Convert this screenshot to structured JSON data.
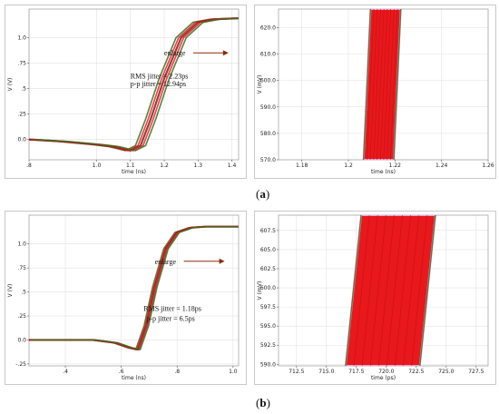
{
  "panel_labels": {
    "a": "a",
    "b": "b"
  },
  "chart_data": [
    {
      "id": "a-left",
      "type": "line",
      "xlabel": "time (ns)",
      "ylabel": "V (V)",
      "xlim": [
        0.8,
        1.42
      ],
      "ylim": [
        -0.2,
        1.28
      ],
      "x_ticks": [
        0.8,
        1.0,
        1.1,
        1.2,
        1.3,
        1.4
      ],
      "x_tick_labels": [
        ".8",
        "1.0",
        "1.1",
        "1.2",
        "1.3",
        "1.4"
      ],
      "y_ticks": [
        0.0,
        0.25,
        0.5,
        0.75,
        1.0
      ],
      "y_tick_labels": [
        "0.0",
        ".25",
        ".5",
        ".75",
        "1.0"
      ],
      "grid": true,
      "series": [
        {
          "x": [
            0.8,
            0.9,
            1.0,
            1.05,
            1.1,
            1.13,
            1.16,
            1.2,
            1.25,
            1.3,
            1.35,
            1.42
          ],
          "y": [
            0.0,
            -0.02,
            -0.05,
            -0.07,
            -0.11,
            -0.06,
            0.2,
            0.6,
            1.0,
            1.15,
            1.18,
            1.19
          ]
        }
      ],
      "trace_spread": 0.015,
      "annotations": [
        {
          "text": "enlarge",
          "arrow": true,
          "x": 1.2,
          "y": 0.85,
          "x2": 1.39
        },
        {
          "text": "RMS jitter = 2.23ps",
          "x": 1.1,
          "y": 0.6
        },
        {
          "text": "p-p jitter = 12.94ps",
          "x": 1.1,
          "y": 0.52
        }
      ]
    },
    {
      "id": "a-right",
      "type": "line",
      "xlabel": "time (ns)",
      "ylabel": "V (mV)",
      "xlim": [
        1.17,
        1.26
      ],
      "ylim": [
        570,
        627
      ],
      "x_ticks": [
        1.18,
        1.2,
        1.22,
        1.24,
        1.26
      ],
      "x_tick_labels": [
        "1.18",
        "1.2",
        "1.22",
        "1.24",
        "1.26"
      ],
      "y_ticks": [
        570,
        580,
        590,
        600,
        610,
        620
      ],
      "y_tick_labels": [
        "570.0",
        "580.0",
        "590.0",
        "600.0",
        "610.0",
        "620.0"
      ],
      "grid": true,
      "band": {
        "y_bottom": 570,
        "y_top": 627,
        "left_bottom": 1.2065,
        "right_bottom": 1.2195,
        "left_top": 1.2095,
        "right_top": 1.2225
      }
    },
    {
      "id": "b-left",
      "type": "line",
      "xlabel": "time (ns)",
      "ylabel": "V (V)",
      "xlim": [
        0.27,
        1.02
      ],
      "ylim": [
        -0.27,
        1.3
      ],
      "x_ticks": [
        0.4,
        0.6,
        0.8,
        1.0
      ],
      "x_tick_labels": [
        ".4",
        ".6",
        ".8",
        "1.0"
      ],
      "y_ticks": [
        -0.25,
        0.0,
        0.25,
        0.5,
        0.75,
        1.0
      ],
      "y_tick_labels": [
        "-.25",
        "0.0",
        ".25",
        ".5",
        ".75",
        "1.0"
      ],
      "grid": true,
      "series": [
        {
          "x": [
            0.27,
            0.4,
            0.5,
            0.58,
            0.63,
            0.66,
            0.69,
            0.72,
            0.76,
            0.8,
            0.85,
            0.9,
            1.02
          ],
          "y": [
            0.0,
            0.0,
            0.0,
            -0.03,
            -0.08,
            -0.1,
            0.15,
            0.55,
            0.95,
            1.12,
            1.17,
            1.18,
            1.18
          ]
        }
      ],
      "trace_spread": 0.008,
      "annotations": [
        {
          "text": "enlarge",
          "arrow": true,
          "x": 0.72,
          "y": 0.82,
          "x2": 0.97
        },
        {
          "text": "RMS jitter = 1.18ps",
          "x": 0.68,
          "y": 0.3
        },
        {
          "text": "p-p jitter = 6.5ps",
          "x": 0.69,
          "y": 0.2
        }
      ]
    },
    {
      "id": "b-right",
      "type": "line",
      "xlabel": "time (ps)",
      "ylabel": "V (mV)",
      "xlim": [
        711.0,
        728.5
      ],
      "ylim": [
        589.8,
        609.5
      ],
      "x_ticks": [
        712.5,
        715.0,
        717.5,
        720.0,
        722.5,
        725.0,
        727.5
      ],
      "x_tick_labels": [
        "712.5",
        "715.0",
        "717.5",
        "720.0",
        "722.5",
        "725.0",
        "727.5"
      ],
      "y_ticks": [
        590.0,
        592.5,
        595.0,
        597.5,
        600.0,
        602.5,
        605.0,
        607.5
      ],
      "y_tick_labels": [
        "590.0",
        "592.5",
        "595.0",
        "597.5",
        "600.0",
        "602.5",
        "605.0",
        "607.5"
      ],
      "grid": true,
      "band": {
        "y_bottom": 589.8,
        "y_top": 609.5,
        "left_bottom": 716.6,
        "right_bottom": 722.8,
        "left_top": 717.9,
        "right_top": 724.1
      }
    }
  ]
}
